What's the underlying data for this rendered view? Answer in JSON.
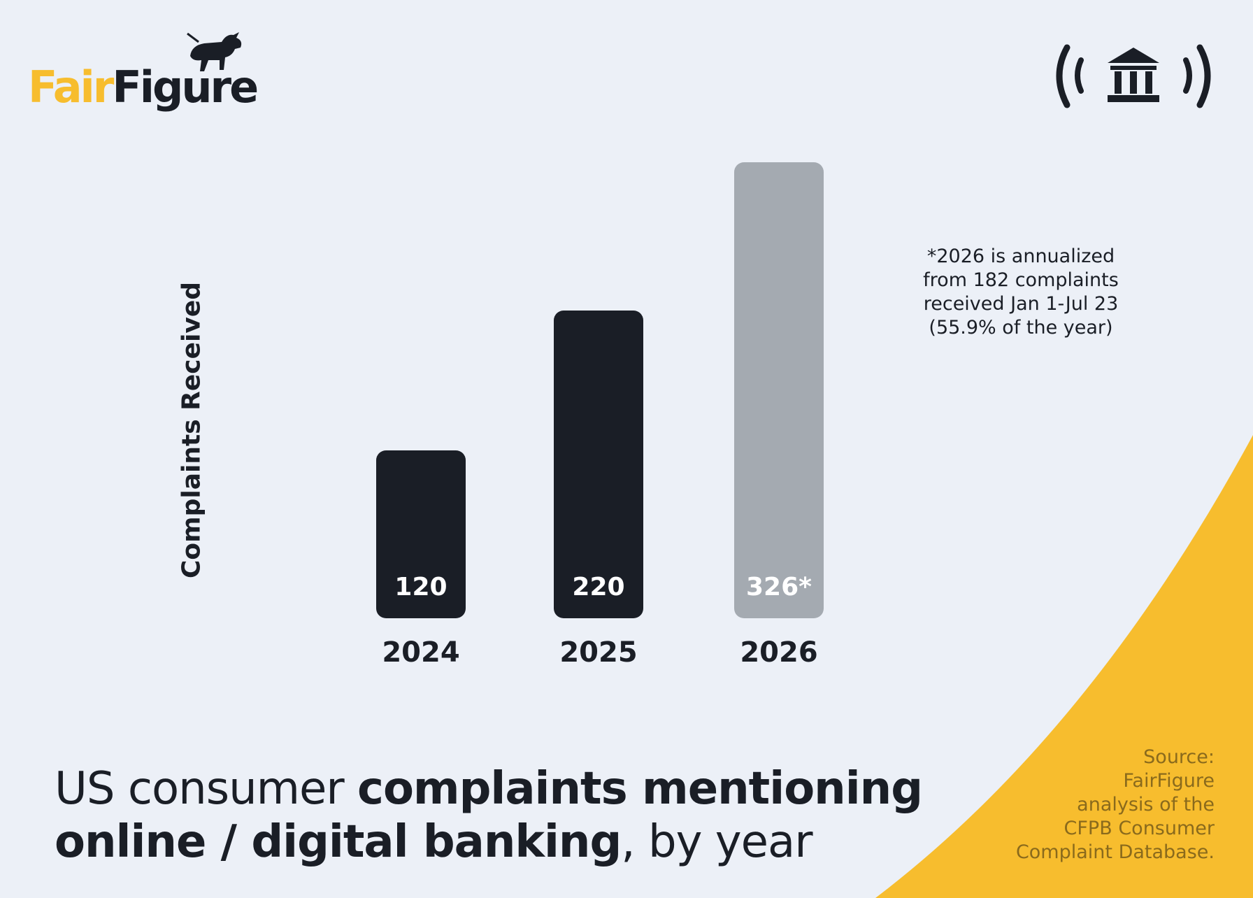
{
  "brand": {
    "name_part1": "Fair",
    "name_part2": "Figure",
    "accent_color": "#f7bd2e",
    "dark_color": "#1a1e26",
    "logo_icon": "bull-icon",
    "right_icon": "online-bank-icon"
  },
  "title": {
    "part1": "US consumer ",
    "part2_bold": "complaints mentioning",
    "part3_bold": "online / digital banking",
    "part4": ", by year"
  },
  "note": {
    "lines": [
      "*2026 is annualized",
      "from 182 complaints",
      "received Jan 1-Jul 23",
      "(55.9% of the year)"
    ]
  },
  "source": {
    "lines": [
      "Source:",
      "FairFigure",
      "analysis of the",
      "CFPB Consumer",
      "Complaint Database."
    ]
  },
  "chart_data": {
    "type": "bar",
    "title": "",
    "xlabel": "",
    "ylabel": "Complaints Received",
    "categories": [
      "2024",
      "2025",
      "2026"
    ],
    "values": [
      120,
      220,
      326
    ],
    "data_labels": [
      "120",
      "220",
      "326*"
    ],
    "bar_colors": [
      "#1a1e26",
      "#1a1e26",
      "#a4aab1"
    ],
    "ylim": [
      0,
      326
    ],
    "grid": false,
    "legend": "none"
  }
}
